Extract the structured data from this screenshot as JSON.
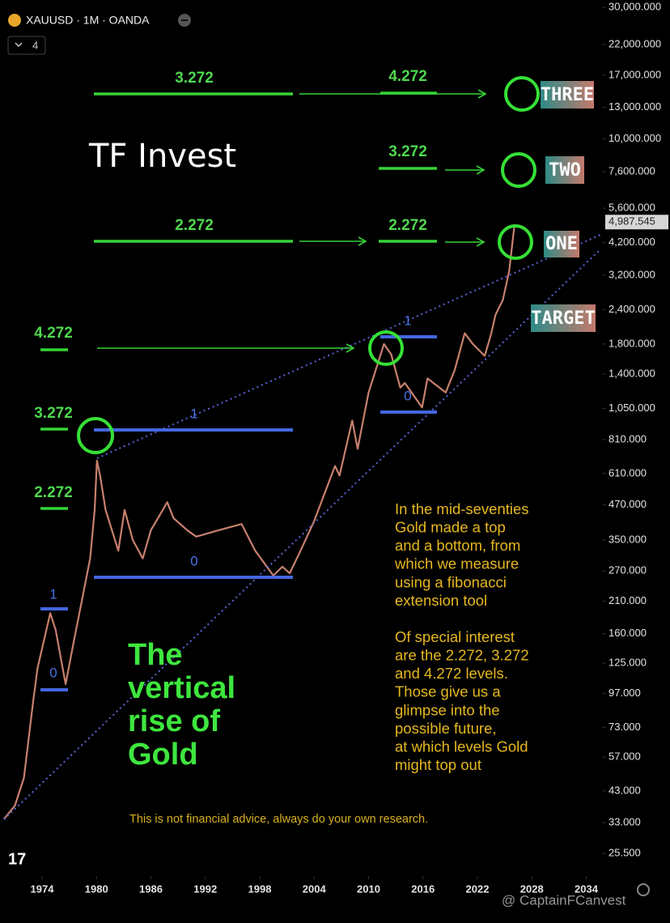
{
  "header": {
    "symbol": "XAUUSD · 1M · OANDA",
    "indicator_count": "4"
  },
  "chart_data": {
    "type": "line",
    "x": [
      1969.8,
      1971,
      1972,
      1973,
      1973.5,
      1974.9,
      1975.5,
      1976.6,
      1977.5,
      1978.5,
      1979.3,
      1979.8,
      1980.05,
      1980.4,
      1981,
      1982.4,
      1983.1,
      1984,
      1985.1,
      1986,
      1987.8,
      1988.5,
      1990,
      1991,
      1993.5,
      1996,
      1997.5,
      1999.5,
      2000.5,
      2001.3,
      2002.5,
      2004,
      2006.3,
      2006.8,
      2008.2,
      2008.8,
      2010,
      2011.7,
      2012.5,
      2013.5,
      2014,
      2015.9,
      2016.5,
      2018.5,
      2019.5,
      2020.6,
      2021.5,
      2022.8,
      2023.5,
      2024,
      2024.8,
      2025.5,
      2026.1
    ],
    "values": [
      34,
      38,
      48,
      90,
      120,
      190,
      165,
      105,
      150,
      220,
      300,
      450,
      680,
      600,
      450,
      320,
      450,
      350,
      300,
      380,
      480,
      420,
      380,
      360,
      380,
      400,
      320,
      260,
      280,
      265,
      320,
      410,
      650,
      600,
      950,
      750,
      1200,
      1800,
      1650,
      1250,
      1300,
      1060,
      1350,
      1200,
      1450,
      1970,
      1800,
      1630,
      1950,
      2300,
      2600,
      3300,
      4900
    ],
    "color": "#c8806e",
    "log_scale": true,
    "xlim": [
      1969.36,
      2035.83
    ],
    "xticks": [
      1974,
      1980,
      1986,
      1992,
      1998,
      2004,
      2010,
      2016,
      2022,
      2028,
      2034
    ],
    "ylim": [
      21.4,
      31900
    ],
    "yticks": [
      {
        "value": 25.5,
        "label": "25.500"
      },
      {
        "value": 33,
        "label": "33.000"
      },
      {
        "value": 43,
        "label": "43.000"
      },
      {
        "value": 57,
        "label": "57.000"
      },
      {
        "value": 73,
        "label": "73.000"
      },
      {
        "value": 97,
        "label": "97.000"
      },
      {
        "value": 125,
        "label": "125.000"
      },
      {
        "value": 160,
        "label": "160.000"
      },
      {
        "value": 210,
        "label": "210.000"
      },
      {
        "value": 270,
        "label": "270.000"
      },
      {
        "value": 350,
        "label": "350.000"
      },
      {
        "value": 470,
        "label": "470.000"
      },
      {
        "value": 610,
        "label": "610.000"
      },
      {
        "value": 810,
        "label": "810.000"
      },
      {
        "value": 1050,
        "label": "1,050.000"
      },
      {
        "value": 1400,
        "label": "1,400.000"
      },
      {
        "value": 1800,
        "label": "1,800.000"
      },
      {
        "value": 2400,
        "label": "2,400.000"
      },
      {
        "value": 3200,
        "label": "3,200.000"
      },
      {
        "value": 4200,
        "label": "4,200.000"
      },
      {
        "value": 5600,
        "label": "5,600.000"
      },
      {
        "value": 7600,
        "label": "7,600.000"
      },
      {
        "value": 10000,
        "label": "10,000.000"
      },
      {
        "value": 13000,
        "label": "13,000.000"
      },
      {
        "value": 17000,
        "label": "17,000.000"
      },
      {
        "value": 22000,
        "label": "22,000.000"
      },
      {
        "value": 30000,
        "label": "30,000.000"
      }
    ],
    "current_price": {
      "value": 4987.545,
      "label": "4,987.545"
    }
  },
  "annotations": {
    "brand": "TF Invest",
    "extension_labels": [
      "3.272",
      "4.272",
      "3.272",
      "2.272",
      "2.272",
      "4.272",
      "3.272",
      "2.272"
    ],
    "fib_marks": [
      "1",
      "0",
      "1",
      "0",
      "1",
      "0"
    ],
    "targets": [
      "THREE",
      "TWO",
      "ONE",
      "TARGET"
    ],
    "headline": [
      "The",
      "vertical",
      "rise of",
      "Gold"
    ],
    "explanation": [
      [
        "In the mid-seventies",
        "Gold made a top",
        "and a bottom, from",
        "which we measure",
        "using a fibonacci",
        "extension tool"
      ],
      [
        "Of special interest",
        "are the 2.272, 3.272",
        "and 4.272 levels.",
        "Those give us a",
        "glimpse into the",
        "possible future,",
        "at which levels Gold",
        "might top out"
      ]
    ],
    "disclaimer": "This is not financial advice, always do your own research.",
    "watermark": "@ CaptainFCanvest"
  }
}
